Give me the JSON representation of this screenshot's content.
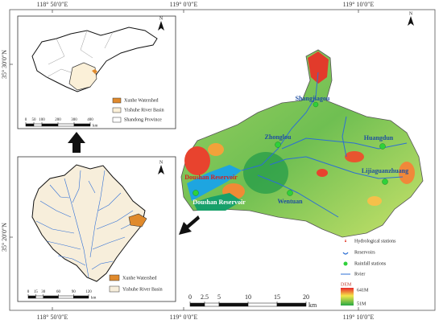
{
  "frame": {
    "top_labels": [
      "118° 50′0″E",
      "119° 0′0″E",
      "119° 10′0″E"
    ],
    "bottom_labels": [
      "118° 50′0″E",
      "119° 0′0″E",
      "119° 10′0″E"
    ],
    "left_labels": [
      "35° 30′0″N",
      "35° 20′0″N"
    ]
  },
  "inset_province": {
    "north": "N",
    "scale": {
      "ticks": [
        0,
        50,
        100,
        200,
        300,
        400
      ],
      "unit": "km"
    },
    "legend": [
      "Xunhe Watershed",
      "Yishuhe River Basin",
      "Shandong Province"
    ]
  },
  "inset_basin": {
    "north": "N",
    "scale": {
      "ticks": [
        0,
        15,
        30,
        60,
        90,
        120
      ],
      "unit": "km"
    },
    "legend": [
      "Xunhe Watershed",
      "Yishuhe River Basin"
    ]
  },
  "main_map": {
    "north": "N",
    "stations": [
      "Shangjiagou",
      "Zhonglou",
      "Huangdun",
      "Lijiaguanzhuang",
      "Wentuan"
    ],
    "reservoir_labels": [
      "Doushan Reservoir",
      "Doushan Reservoir"
    ],
    "legend": {
      "items": [
        "Hydrological stations",
        "Reservoirs",
        "Rainfall stations",
        "Rvier"
      ],
      "dem_title": "DEM",
      "dem_high": "641M",
      "dem_low": "51M"
    },
    "scale": {
      "ticks": [
        0,
        2.5,
        5,
        10,
        15,
        20
      ],
      "unit": "km"
    }
  }
}
